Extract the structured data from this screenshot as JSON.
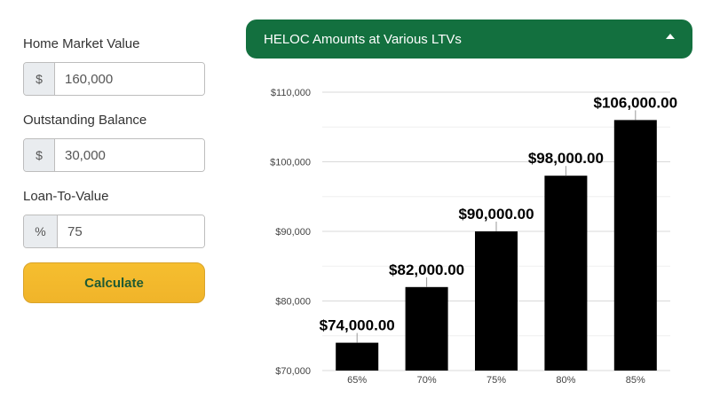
{
  "form": {
    "home_value": {
      "label": "Home Market Value",
      "prefix": "$",
      "value": "160,000"
    },
    "outstanding_balance": {
      "label": "Outstanding Balance",
      "prefix": "$",
      "value": "30,000"
    },
    "ltv": {
      "label": "Loan-To-Value",
      "prefix": "%",
      "value": "75"
    },
    "calculate_label": "Calculate"
  },
  "panel": {
    "title": "HELOC Amounts at Various LTVs",
    "toggle_icon": "caret-up-icon"
  },
  "colors": {
    "header_green": "#13703f",
    "button_gold": "#f3b92e",
    "button_text": "#1e5a33",
    "bar": "#000000"
  },
  "chart_data": {
    "type": "bar",
    "categories": [
      "65%",
      "70%",
      "75%",
      "80%",
      "85%"
    ],
    "values": [
      74000,
      82000,
      90000,
      98000,
      106000
    ],
    "data_labels": [
      "$74,000.00",
      "$82,000.00",
      "$90,000.00",
      "$98,000.00",
      "$106,000.00"
    ],
    "yticks": [
      70000,
      80000,
      90000,
      100000,
      110000
    ],
    "ytick_labels": [
      "$70,000",
      "$80,000",
      "$90,000",
      "$100,000",
      "$110,000"
    ],
    "ylim": [
      70000,
      110000
    ],
    "grid": true,
    "title": "",
    "xlabel": "",
    "ylabel": ""
  }
}
